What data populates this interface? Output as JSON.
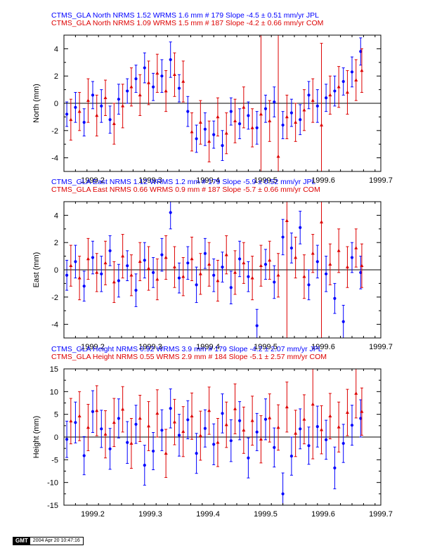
{
  "chart_data": [
    {
      "type": "scatter",
      "ylabel": "North (mm)",
      "xlim": [
        1999.15,
        1999.7
      ],
      "ylim": [
        -5,
        5
      ],
      "x_ticks": [
        1999.2,
        1999.3,
        1999.4,
        1999.5,
        1999.6,
        1999.7
      ],
      "y_ticks": [
        -4,
        -2,
        0,
        2,
        4
      ],
      "header": [
        "CTMS_GLA North NRMS 1.52 WRMS  1.6 mm # 179 Slope   -4.5 ±  0.51 mm/yr JPL",
        "CTMS_GLA North NRMS 1.09 WRMS  1.5 mm # 187 Slope   -4.2 ±  0.66 mm/yr COM"
      ],
      "series": [
        {
          "label": "JPL",
          "color": "#0000ff",
          "marker": "circle",
          "n": 179,
          "slope": -4.5,
          "slope_sigma": 0.51,
          "nrms": 1.52,
          "wrms": 1.6,
          "x": [
            1999.155,
            1999.17,
            1999.185,
            1999.2,
            1999.215,
            1999.23,
            1999.245,
            1999.26,
            1999.275,
            1999.29,
            1999.305,
            1999.32,
            1999.335,
            1999.35,
            1999.365,
            1999.38,
            1999.395,
            1999.41,
            1999.425,
            1999.44,
            1999.455,
            1999.47,
            1999.485,
            1999.5,
            1999.515,
            1999.53,
            1999.545,
            1999.56,
            1999.575,
            1999.59,
            1999.605,
            1999.62,
            1999.635,
            1999.65,
            1999.665
          ],
          "y": [
            -0.8,
            -0.3,
            -1.4,
            0.6,
            -0.2,
            -1.2,
            0.3,
            0.9,
            1.8,
            2.6,
            1.2,
            2.0,
            3.2,
            1.1,
            -0.6,
            -2.6,
            -1.9,
            -2.3,
            -3.1,
            -0.6,
            -1.5,
            -0.9,
            -1.8,
            -0.4,
            0.1,
            -1.6,
            -0.7,
            -1.2,
            0.6,
            -0.2,
            0.4,
            0.9,
            1.6,
            2.3,
            3.8
          ],
          "err": [
            0.9,
            1.1,
            1.0,
            1.0,
            1.2,
            1.0,
            1.1,
            0.9,
            1.0,
            1.1,
            1.0,
            1.2,
            1.3,
            1.0,
            1.1,
            1.0,
            1.2,
            1.0,
            1.1,
            1.0,
            1.1,
            1.0,
            1.2,
            1.0,
            1.1,
            1.0,
            1.0,
            1.1,
            1.0,
            1.2,
            1.0,
            1.1,
            1.0,
            1.1,
            1.0
          ]
        },
        {
          "label": "COM",
          "color": "#dd0000",
          "marker": "triangle",
          "n": 187,
          "slope": -4.2,
          "slope_sigma": 0.66,
          "nrms": 1.09,
          "wrms": 1.5,
          "x": [
            1999.162,
            1999.177,
            1999.192,
            1999.207,
            1999.222,
            1999.237,
            1999.252,
            1999.267,
            1999.282,
            1999.297,
            1999.312,
            1999.327,
            1999.342,
            1999.357,
            1999.372,
            1999.387,
            1999.402,
            1999.417,
            1999.432,
            1999.447,
            1999.462,
            1999.477,
            1999.492,
            1999.507,
            1999.522,
            1999.537,
            1999.552,
            1999.567,
            1999.582,
            1999.597,
            1999.612,
            1999.627,
            1999.642,
            1999.657,
            1999.667
          ],
          "y": [
            -1.2,
            -0.6,
            0.2,
            -0.9,
            0.4,
            -1.5,
            -0.2,
            1.2,
            0.6,
            1.5,
            2.2,
            0.9,
            2.1,
            1.6,
            -2.1,
            -1.4,
            -2.8,
            -1.0,
            -2.2,
            -1.3,
            -0.3,
            -1.8,
            -0.8,
            -1.3,
            -3.9,
            -1.0,
            -1.4,
            -0.5,
            0.2,
            -1.6,
            0.6,
            1.2,
            0.8,
            1.7,
            2.4
          ],
          "err": [
            1.5,
            1.4,
            1.6,
            1.5,
            1.3,
            1.5,
            1.6,
            1.4,
            1.5,
            1.6,
            1.4,
            1.5,
            1.6,
            1.5,
            1.4,
            1.6,
            1.5,
            1.4,
            1.5,
            1.6,
            1.5,
            1.4,
            6.0,
            1.5,
            9.0,
            1.6,
            1.4,
            1.5,
            1.6,
            6.0,
            1.4,
            1.5,
            1.6,
            1.5,
            1.6
          ]
        }
      ]
    },
    {
      "type": "scatter",
      "ylabel": "East (mm)",
      "xlim": [
        1999.15,
        1999.7
      ],
      "ylim": [
        -5,
        5
      ],
      "x_ticks": [
        1999.2,
        1999.3,
        1999.4,
        1999.5,
        1999.6,
        1999.7
      ],
      "y_ticks": [
        -4,
        -2,
        0,
        2,
        4
      ],
      "header": [
        "CTMS_GLA East NRMS 1.12 WRMS  1.2 mm # 179 Slope   -5.9 ±  0.52 mm/yr JPL",
        "CTMS_GLA East NRMS 0.66 WRMS  0.9 mm # 187 Slope   -5.7 ±  0.66 mm/yr COM"
      ],
      "series": [
        {
          "label": "JPL",
          "color": "#0000ff",
          "marker": "circle",
          "n": 179,
          "slope": -5.9,
          "slope_sigma": 0.52,
          "nrms": 1.12,
          "wrms": 1.2,
          "x": [
            1999.155,
            1999.17,
            1999.185,
            1999.2,
            1999.215,
            1999.23,
            1999.245,
            1999.26,
            1999.275,
            1999.29,
            1999.305,
            1999.32,
            1999.335,
            1999.35,
            1999.365,
            1999.38,
            1999.395,
            1999.41,
            1999.425,
            1999.44,
            1999.455,
            1999.47,
            1999.485,
            1999.5,
            1999.515,
            1999.53,
            1999.545,
            1999.56,
            1999.575,
            1999.59,
            1999.605,
            1999.62,
            1999.635,
            1999.65,
            1999.665
          ],
          "y": [
            -0.4,
            0.6,
            -1.2,
            0.9,
            -0.3,
            1.4,
            -0.8,
            0.3,
            -1.5,
            0.7,
            -0.2,
            1.1,
            4.2,
            -0.6,
            0.5,
            -1.1,
            1.2,
            -0.4,
            0.2,
            -1.3,
            0.8,
            -0.5,
            -4.1,
            0.4,
            -0.9,
            2.4,
            1.6,
            3.1,
            -1.1,
            0.6,
            -0.3,
            -2.1,
            -3.8,
            0.9,
            -0.2
          ],
          "err": [
            1.1,
            1.2,
            1.1,
            1.2,
            1.3,
            1.1,
            1.2,
            1.1,
            1.2,
            1.3,
            1.1,
            1.2,
            1.2,
            1.1,
            1.2,
            1.3,
            1.1,
            1.2,
            1.1,
            1.2,
            1.3,
            1.1,
            1.2,
            1.1,
            1.2,
            1.3,
            1.1,
            1.2,
            1.1,
            1.2,
            1.3,
            1.1,
            1.2,
            1.1,
            1.2
          ]
        },
        {
          "label": "COM",
          "color": "#dd0000",
          "marker": "triangle",
          "n": 187,
          "slope": -5.7,
          "slope_sigma": 0.66,
          "nrms": 0.66,
          "wrms": 0.9,
          "x": [
            1999.162,
            1999.177,
            1999.192,
            1999.207,
            1999.222,
            1999.237,
            1999.252,
            1999.267,
            1999.282,
            1999.297,
            1999.312,
            1999.327,
            1999.342,
            1999.357,
            1999.372,
            1999.387,
            1999.402,
            1999.417,
            1999.432,
            1999.447,
            1999.462,
            1999.477,
            1999.492,
            1999.507,
            1999.522,
            1999.537,
            1999.552,
            1999.567,
            1999.582,
            1999.597,
            1999.612,
            1999.627,
            1999.642,
            1999.657,
            1999.667
          ],
          "y": [
            0.3,
            -0.6,
            0.8,
            -0.2,
            0.5,
            -0.9,
            1.0,
            -0.4,
            0.6,
            0.1,
            -0.7,
            0.9,
            0.2,
            -0.5,
            0.8,
            -0.3,
            0.4,
            -0.8,
            1.1,
            -0.2,
            0.5,
            -0.6,
            0.3,
            0.7,
            -0.4,
            3.6,
            0.9,
            -0.5,
            1.2,
            3.5,
            0.4,
            1.4,
            0.2,
            1.6,
            0.3
          ],
          "err": [
            1.5,
            1.6,
            1.5,
            1.4,
            1.6,
            1.5,
            1.6,
            1.5,
            1.4,
            1.6,
            1.5,
            1.6,
            1.5,
            1.4,
            1.6,
            1.5,
            1.6,
            1.5,
            1.4,
            1.6,
            1.5,
            1.6,
            1.5,
            1.4,
            1.6,
            9.0,
            1.5,
            1.6,
            1.4,
            9.0,
            1.5,
            1.6,
            1.5,
            1.4,
            1.6
          ]
        }
      ]
    },
    {
      "type": "scatter",
      "ylabel": "Height (mm)",
      "xlim": [
        1999.15,
        1999.7
      ],
      "ylim": [
        -15,
        15
      ],
      "x_ticks": [
        1999.2,
        1999.3,
        1999.4,
        1999.5,
        1999.6,
        1999.7
      ],
      "y_ticks": [
        -15,
        -10,
        -5,
        0,
        5,
        10,
        15
      ],
      "header": [
        "CTMS_GLA Height NRMS 0.92 WRMS  3.9 mm # 179 Slope   -4.2 ±  2.07 mm/yr JPL",
        "CTMS_GLA Height NRMS 0.55 WRMS  2.9 mm # 184 Slope   -5.1 ±  2.57 mm/yr COM"
      ],
      "series": [
        {
          "label": "JPL",
          "color": "#0000ff",
          "marker": "circle",
          "n": 179,
          "slope": -4.2,
          "slope_sigma": 2.07,
          "nrms": 0.92,
          "wrms": 3.9,
          "x": [
            1999.155,
            1999.17,
            1999.185,
            1999.2,
            1999.215,
            1999.23,
            1999.245,
            1999.26,
            1999.275,
            1999.29,
            1999.305,
            1999.32,
            1999.335,
            1999.35,
            1999.365,
            1999.38,
            1999.395,
            1999.41,
            1999.425,
            1999.44,
            1999.455,
            1999.47,
            1999.485,
            1999.5,
            1999.515,
            1999.53,
            1999.545,
            1999.56,
            1999.575,
            1999.59,
            1999.605,
            1999.62,
            1999.635,
            1999.65,
            1999.665
          ],
          "y": [
            -0.5,
            3.2,
            -4.1,
            5.6,
            1.8,
            -2.6,
            4.1,
            -1.2,
            2.8,
            -6.2,
            -3.1,
            1.5,
            6.3,
            0.4,
            3.8,
            -3.6,
            1.9,
            -1.6,
            5.2,
            -0.8,
            3.6,
            -4.6,
            1.1,
            3.9,
            -2.3,
            -12.5,
            -4.2,
            1.8,
            -1.9,
            2.3,
            -0.6,
            -6.8,
            -1.4,
            2.6,
            4.1
          ],
          "err": [
            4.0,
            4.5,
            4.2,
            4.6,
            4.1,
            4.5,
            4.3,
            4.6,
            4.2,
            4.4,
            4.1,
            4.5,
            4.3,
            4.6,
            4.2,
            4.4,
            4.1,
            4.5,
            4.3,
            4.6,
            4.2,
            4.4,
            4.1,
            4.5,
            4.3,
            4.6,
            4.2,
            4.4,
            4.1,
            4.5,
            4.3,
            4.6,
            4.2,
            4.4,
            4.1
          ]
        },
        {
          "label": "COM",
          "color": "#dd0000",
          "marker": "triangle",
          "n": 184,
          "slope": -5.1,
          "slope_sigma": 2.57,
          "nrms": 0.55,
          "wrms": 2.9,
          "x": [
            1999.162,
            1999.177,
            1999.192,
            1999.207,
            1999.222,
            1999.237,
            1999.252,
            1999.267,
            1999.282,
            1999.297,
            1999.312,
            1999.327,
            1999.342,
            1999.357,
            1999.372,
            1999.387,
            1999.402,
            1999.417,
            1999.432,
            1999.447,
            1999.462,
            1999.477,
            1999.492,
            1999.507,
            1999.522,
            1999.537,
            1999.552,
            1999.567,
            1999.582,
            1999.597,
            1999.612,
            1999.627,
            1999.642,
            1999.657,
            1999.667
          ],
          "y": [
            3.5,
            4.6,
            2.1,
            5.8,
            0.6,
            3.2,
            6.1,
            -1.4,
            4.1,
            2.4,
            5.2,
            -3.6,
            3.3,
            1.2,
            4.6,
            0.3,
            5.8,
            -1.2,
            2.7,
            6.2,
            1.5,
            3.6,
            -0.5,
            4.2,
            2.1,
            6.6,
            0.8,
            3.9,
            7.2,
            1.6,
            4.6,
            2.2,
            5.4,
            9.6,
            5.6
          ],
          "err": [
            5.0,
            5.4,
            5.1,
            5.5,
            5.2,
            5.3,
            5.0,
            5.5,
            5.1,
            5.4,
            5.2,
            5.3,
            5.0,
            5.5,
            5.1,
            5.4,
            5.2,
            5.3,
            5.0,
            5.5,
            5.1,
            5.4,
            5.2,
            5.3,
            5.0,
            5.5,
            5.1,
            5.4,
            12.0,
            5.3,
            5.0,
            5.5,
            5.1,
            5.4,
            5.2
          ]
        }
      ]
    }
  ],
  "footer": {
    "logo": "GMT",
    "timestamp": "2004 Apr 20 10:47:16"
  }
}
